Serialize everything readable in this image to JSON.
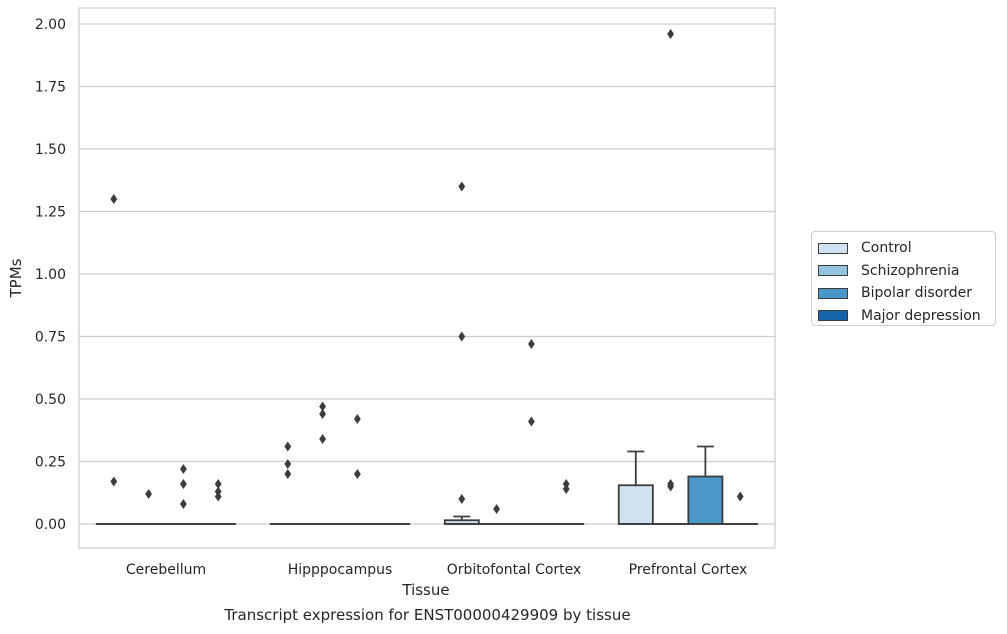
{
  "chart_data": {
    "type": "box",
    "title": "Transcript expression for ENST00000429909 by tissue",
    "xlabel": "Tissue",
    "ylabel": "TPMs",
    "ylim": [
      -0.095,
      2.06
    ],
    "yticks": [
      "0.00",
      "0.25",
      "0.50",
      "0.75",
      "1.00",
      "1.25",
      "1.50",
      "1.75",
      "2.00"
    ],
    "grid": "horizontal",
    "legend_position": "right",
    "categories": [
      "Cerebellum",
      "Hipppocampus",
      "Orbitofontal Cortex",
      "Prefrontal Cortex"
    ],
    "series": [
      {
        "name": "Control",
        "color": "#d0e1f2",
        "boxes": [
          {
            "q1": 0,
            "median": 0,
            "q3": 0,
            "whisker_low": 0,
            "whisker_high": 0,
            "outliers": [
              0.17,
              1.3
            ]
          },
          {
            "q1": 0,
            "median": 0,
            "q3": 0,
            "whisker_low": 0,
            "whisker_high": 0,
            "outliers": [
              0.2,
              0.24,
              0.31
            ]
          },
          {
            "q1": 0,
            "median": 0,
            "q3": 0.015,
            "whisker_low": 0,
            "whisker_high": 0.03,
            "outliers": [
              0.1,
              0.75,
              1.35
            ]
          },
          {
            "q1": 0,
            "median": 0,
            "q3": 0.155,
            "whisker_low": 0,
            "whisker_high": 0.29,
            "outliers": []
          }
        ]
      },
      {
        "name": "Schizophrenia",
        "color": "#94c4df",
        "boxes": [
          {
            "q1": 0,
            "median": 0,
            "q3": 0,
            "whisker_low": 0,
            "whisker_high": 0,
            "outliers": [
              0.12
            ]
          },
          {
            "q1": 0,
            "median": 0,
            "q3": 0,
            "whisker_low": 0,
            "whisker_high": 0,
            "outliers": [
              0.34,
              0.44,
              0.47
            ]
          },
          {
            "q1": 0,
            "median": 0,
            "q3": 0,
            "whisker_low": 0,
            "whisker_high": 0,
            "outliers": [
              0.06
            ]
          },
          {
            "q1": 0,
            "median": 0,
            "q3": 0,
            "whisker_low": 0,
            "whisker_high": 0,
            "outliers": [
              0.15,
              0.16,
              1.96
            ]
          }
        ]
      },
      {
        "name": "Bipolar disorder",
        "color": "#4a98c9",
        "boxes": [
          {
            "q1": 0,
            "median": 0,
            "q3": 0,
            "whisker_low": 0,
            "whisker_high": 0,
            "outliers": [
              0.08,
              0.16,
              0.22
            ]
          },
          {
            "q1": 0,
            "median": 0,
            "q3": 0,
            "whisker_low": 0,
            "whisker_high": 0,
            "outliers": [
              0.2,
              0.42
            ]
          },
          {
            "q1": 0,
            "median": 0,
            "q3": 0,
            "whisker_low": 0,
            "whisker_high": 0,
            "outliers": [
              0.41,
              0.72
            ]
          },
          {
            "q1": 0,
            "median": 0,
            "q3": 0.19,
            "whisker_low": 0,
            "whisker_high": 0.31,
            "outliers": []
          }
        ]
      },
      {
        "name": "Major depression",
        "color": "#1764ab",
        "boxes": [
          {
            "q1": 0,
            "median": 0,
            "q3": 0,
            "whisker_low": 0,
            "whisker_high": 0,
            "outliers": [
              0.11,
              0.13,
              0.16
            ]
          },
          {
            "q1": 0,
            "median": 0,
            "q3": 0,
            "whisker_low": 0,
            "whisker_high": 0,
            "outliers": []
          },
          {
            "q1": 0,
            "median": 0,
            "q3": 0,
            "whisker_low": 0,
            "whisker_high": 0,
            "outliers": [
              0.14,
              0.16
            ]
          },
          {
            "q1": 0,
            "median": 0,
            "q3": 0,
            "whisker_low": 0,
            "whisker_high": 0,
            "outliers": [
              0.11
            ]
          }
        ]
      }
    ]
  }
}
